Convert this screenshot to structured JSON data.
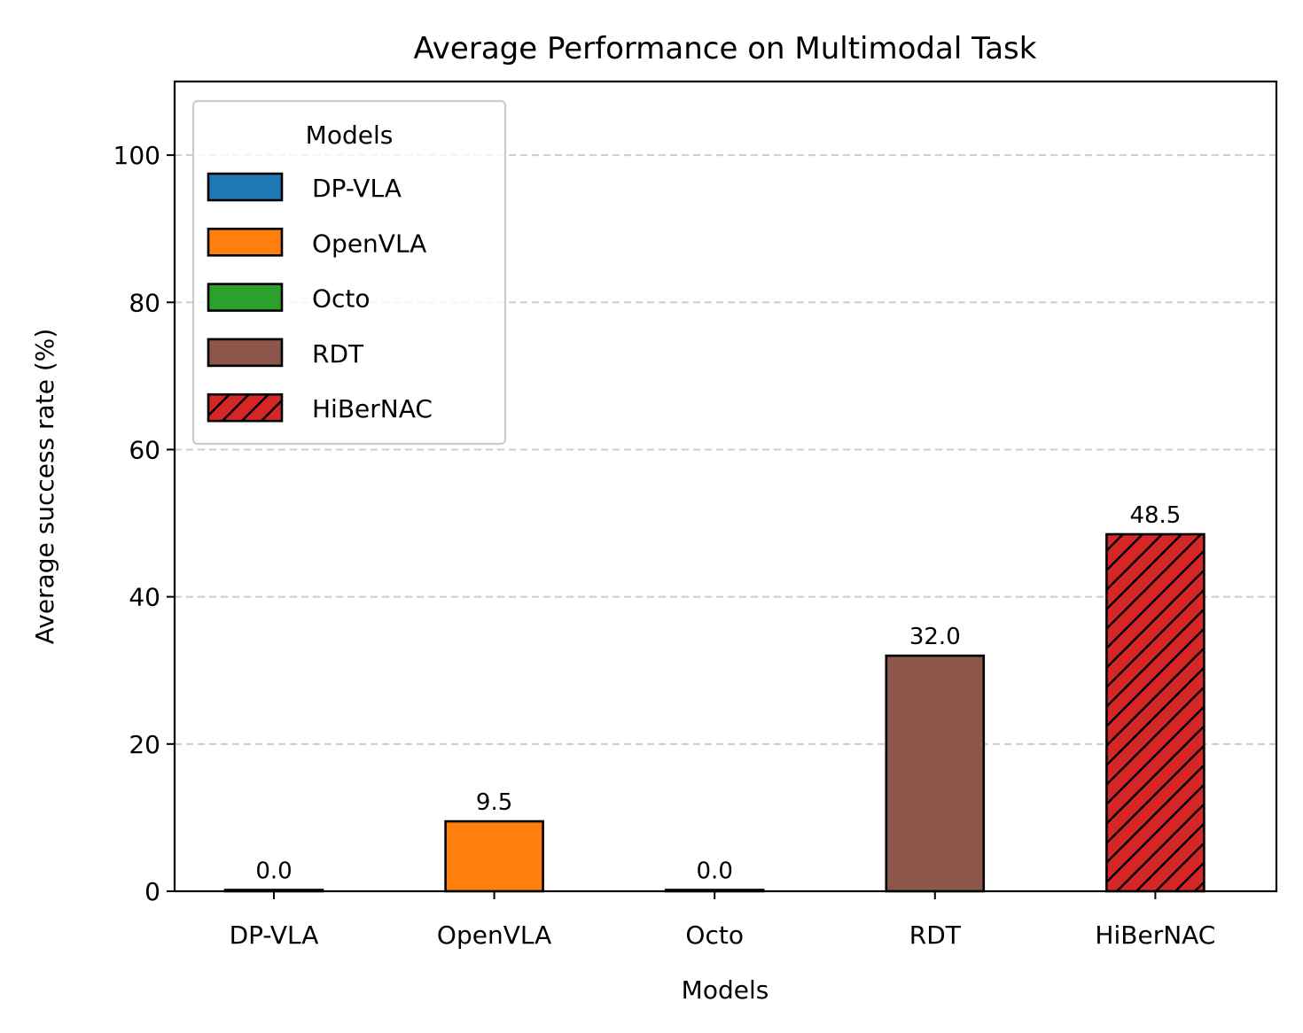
{
  "chart_data": {
    "type": "bar",
    "title": "Average Performance on Multimodal Task",
    "xlabel": "Models",
    "ylabel": "Average success rate (%)",
    "categories": [
      "DP-VLA",
      "OpenVLA",
      "Octo",
      "RDT",
      "HiBerNAC"
    ],
    "values": [
      0.0,
      9.5,
      0.0,
      32.0,
      48.5
    ],
    "value_labels": [
      "0.0",
      "9.5",
      "0.0",
      "32.0",
      "48.5"
    ],
    "colors": [
      "#1f77b4",
      "#ff7f0e",
      "#2ca02c",
      "#8c564b",
      "#d62728"
    ],
    "hatched": [
      false,
      false,
      false,
      false,
      true
    ],
    "ylim": [
      0,
      110
    ],
    "yticks": [
      0,
      20,
      40,
      60,
      80,
      100
    ],
    "grid": "y dashed",
    "legend": {
      "title": "Models",
      "placement": "top-left",
      "entries": [
        "DP-VLA",
        "OpenVLA",
        "Octo",
        "RDT",
        "HiBerNAC"
      ]
    }
  }
}
